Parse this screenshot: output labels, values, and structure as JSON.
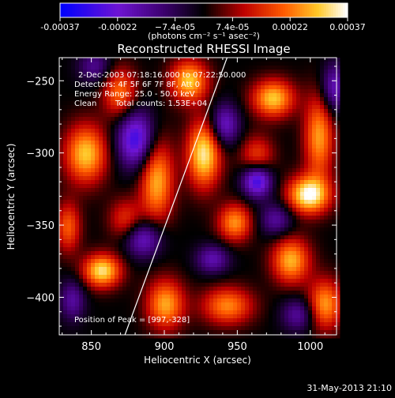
{
  "chart_data": {
    "type": "heatmap",
    "title": "Reconstructed RHESSI Image",
    "xlabel": "Heliocentric X (arcsec)",
    "ylabel": "Heliocentric Y (arcsec)",
    "xlim": [
      828,
      1018
    ],
    "ylim": [
      -426,
      -234
    ],
    "x_ticks": [
      850,
      900,
      950,
      1000
    ],
    "y_ticks": [
      -250,
      -300,
      -350,
      -400
    ],
    "colorbar": {
      "range": [
        -0.00037,
        0.00037
      ],
      "tick_labels": [
        "-0.00037",
        "-0.00022",
        "−7.4e-05",
        "7.4e-05",
        "0.00022",
        "0.00037"
      ],
      "unit_label": "(photons cm⁻² s⁻¹ asec⁻²)"
    },
    "annotations": [
      "2-Dec-2003 07:18:16.000 to 07:22:50.000",
      "Detectors: 4F 5F 6F 7F 8F, Att 0",
      "Energy Range: 25.0 - 50.0 keV",
      "Clean",
      "Total counts: 1.53E+04",
      "Position of Peak = [997,-328]"
    ],
    "peak": {
      "x": 997,
      "y": -328
    },
    "limb_line": [
      [
        873,
        -426
      ],
      [
        943,
        -234
      ]
    ],
    "blobs": [
      {
        "x": 997,
        "y": -328,
        "v": 0.00037,
        "sx": 10,
        "sy": 9
      },
      {
        "x": 926,
        "y": -300,
        "v": 0.00034,
        "sx": 8,
        "sy": 16
      },
      {
        "x": 916,
        "y": -250,
        "v": 0.0003,
        "sx": 9,
        "sy": 10
      },
      {
        "x": 846,
        "y": -300,
        "v": 0.0003,
        "sx": 10,
        "sy": 14
      },
      {
        "x": 857,
        "y": -380,
        "v": 0.00033,
        "sx": 9,
        "sy": 8
      },
      {
        "x": 894,
        "y": -318,
        "v": 0.00028,
        "sx": 8,
        "sy": 20
      },
      {
        "x": 973,
        "y": -262,
        "v": 0.0003,
        "sx": 10,
        "sy": 9
      },
      {
        "x": 1004,
        "y": -288,
        "v": 0.00026,
        "sx": 7,
        "sy": 20
      },
      {
        "x": 985,
        "y": -373,
        "v": 0.00028,
        "sx": 9,
        "sy": 11
      },
      {
        "x": 947,
        "y": -347,
        "v": 0.00025,
        "sx": 8,
        "sy": 9
      },
      {
        "x": 900,
        "y": -403,
        "v": 0.00027,
        "sx": 9,
        "sy": 12
      },
      {
        "x": 1008,
        "y": -403,
        "v": 0.00026,
        "sx": 8,
        "sy": 12
      },
      {
        "x": 942,
        "y": -404,
        "v": 0.00024,
        "sx": 12,
        "sy": 9
      },
      {
        "x": 869,
        "y": -258,
        "v": 0.00022,
        "sx": 8,
        "sy": 12
      },
      {
        "x": 962,
        "y": -302,
        "v": 0.00018,
        "sx": 8,
        "sy": 10
      },
      {
        "x": 873,
        "y": -345,
        "v": 0.00016,
        "sx": 8,
        "sy": 10
      },
      {
        "x": 834,
        "y": -350,
        "v": 0.0002,
        "sx": 6,
        "sy": 12
      },
      {
        "x": 880,
        "y": -290,
        "v": -0.0003,
        "sx": 9,
        "sy": 14
      },
      {
        "x": 962,
        "y": -318,
        "v": -0.00032,
        "sx": 7,
        "sy": 8
      },
      {
        "x": 940,
        "y": -280,
        "v": -0.00022,
        "sx": 7,
        "sy": 10
      },
      {
        "x": 885,
        "y": -358,
        "v": -0.00022,
        "sx": 9,
        "sy": 9
      },
      {
        "x": 932,
        "y": -372,
        "v": -0.00018,
        "sx": 8,
        "sy": 7
      },
      {
        "x": 975,
        "y": -345,
        "v": -0.00016,
        "sx": 8,
        "sy": 8
      },
      {
        "x": 1014,
        "y": -255,
        "v": -0.0002,
        "sx": 6,
        "sy": 12
      },
      {
        "x": 852,
        "y": -240,
        "v": -0.00014,
        "sx": 8,
        "sy": 8
      },
      {
        "x": 990,
        "y": -410,
        "v": -0.00016,
        "sx": 8,
        "sy": 8
      },
      {
        "x": 837,
        "y": -400,
        "v": -0.00016,
        "sx": 6,
        "sy": 10
      }
    ]
  },
  "footer": {
    "date": "31-May-2013 21:10"
  }
}
